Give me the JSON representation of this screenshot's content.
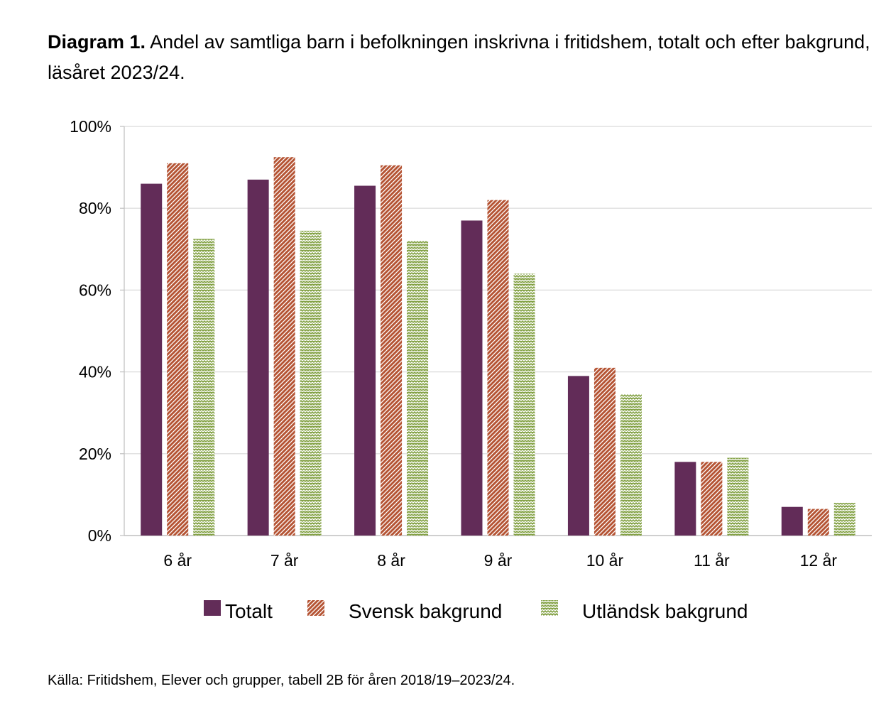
{
  "title": {
    "prefix": "Diagram 1.",
    "text": "Andel av samtliga barn i befolkningen inskrivna i fritidshem, totalt och efter bakgrund, läsåret 2023/24."
  },
  "source": "Källa: Fritidshem, Elever och grupper, tabell 2B för åren 2018/19–2023/24.",
  "colors": {
    "totalt": "#622c58",
    "svensk": "#b55434",
    "utlandsk": "#84a246",
    "grid": "#d9d9d9",
    "axis": "#bfbfbf"
  },
  "chart_data": {
    "type": "bar",
    "title": "",
    "xlabel": "",
    "ylabel": "",
    "ylim": [
      0,
      100
    ],
    "yticks": [
      "0%",
      "20%",
      "40%",
      "60%",
      "80%",
      "100%"
    ],
    "categories": [
      "6 år",
      "7 år",
      "8 år",
      "9 år",
      "10 år",
      "11 år",
      "12 år"
    ],
    "series": [
      {
        "name": "Totalt",
        "key": "totalt",
        "values": [
          86,
          87,
          85.5,
          77,
          39,
          18,
          7
        ]
      },
      {
        "name": "Svensk bakgrund",
        "key": "svensk",
        "values": [
          91,
          92.5,
          90.5,
          82,
          41,
          18,
          6.5
        ]
      },
      {
        "name": "Utländsk bakgrund",
        "key": "utlandsk",
        "values": [
          72.5,
          74.5,
          72,
          64,
          34.5,
          19,
          8
        ]
      }
    ],
    "legend_position": "bottom",
    "grid": true
  }
}
